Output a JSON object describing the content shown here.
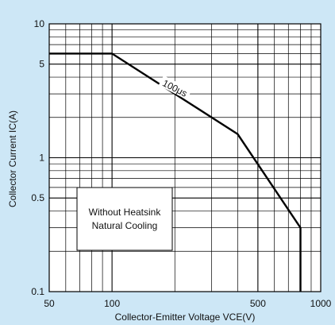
{
  "chart_data": {
    "type": "line",
    "xlabel": "Collector-Emitter Voltage VCE(V)",
    "ylabel": "Collector Current IC(A)",
    "x_scale": "log",
    "y_scale": "log",
    "xlim": [
      50,
      1000
    ],
    "ylim": [
      0.1,
      10
    ],
    "x_ticks": [
      {
        "value": 50,
        "label": "50"
      },
      {
        "value": 100,
        "label": "100"
      },
      {
        "value": 500,
        "label": "500"
      },
      {
        "value": 1000,
        "label": "1000"
      }
    ],
    "y_ticks": [
      {
        "value": 0.1,
        "label": "0.1"
      },
      {
        "value": 0.5,
        "label": "0.5"
      },
      {
        "value": 1,
        "label": "1"
      },
      {
        "value": 5,
        "label": "5"
      },
      {
        "value": 10,
        "label": "10"
      }
    ],
    "grid": true,
    "series": [
      {
        "name": "100μs",
        "x": [
          50,
          100,
          400,
          800,
          800
        ],
        "y": [
          6,
          6,
          1.5,
          0.3,
          0.1
        ]
      }
    ],
    "annotations": [
      {
        "text": "100μs",
        "x": 200,
        "y": 3.3
      }
    ],
    "note": {
      "line1": "Without Heatsink",
      "line2": "Natural Cooling"
    },
    "colors": {
      "background": "#cde7f6",
      "plot": "#ffffff",
      "line": "#000000"
    }
  }
}
